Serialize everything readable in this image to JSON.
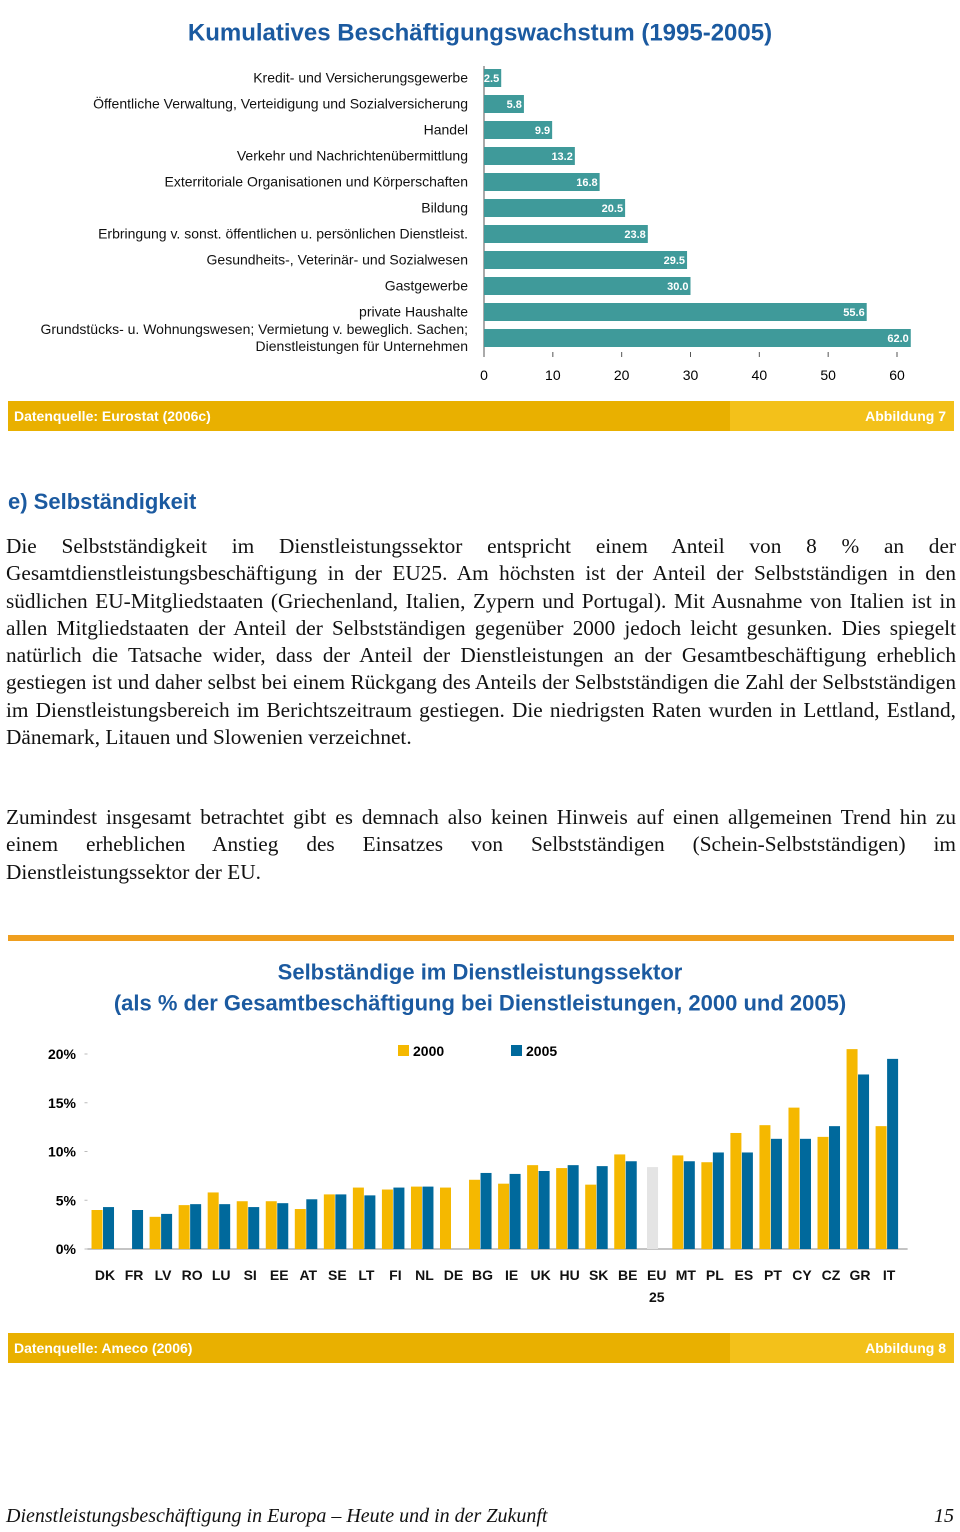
{
  "chart_data": [
    {
      "type": "bar",
      "orientation": "horizontal",
      "title": "Kumulatives Beschäftigungswachstum (1995-2005)",
      "categories": [
        "Kredit- und Versicherungsgewerbe",
        "Öffentliche Verwaltung, Verteidigung und Sozialversicherung",
        "Handel",
        "Verkehr und Nachrichtenübermittlung",
        "Exterritoriale Organisationen und Körperschaften",
        "Bildung",
        "Erbringung v. sonst. öffentlichen u. persönlichen Dienstleist.",
        "Gesundheits-, Veterinär- und Sozialwesen",
        "Gastgewerbe",
        "private Haushalte",
        "Grundstücks- u. Wohnungswesen; Vermietung v. beweglich. Sachen; Dienstleistungen für Unternehmen"
      ],
      "values": [
        2.5,
        5.8,
        9.9,
        13.2,
        16.8,
        20.5,
        23.8,
        29.5,
        30.0,
        55.6,
        62.0
      ],
      "value_labels": [
        "2.5",
        "5.8",
        "9.9",
        "13.2",
        "16.8",
        "20.5",
        "23.8",
        "29.5",
        "30.0",
        "55.6",
        "62.0"
      ],
      "color": "#3f9a9a",
      "xlim": [
        0,
        62
      ],
      "xticks": [
        0,
        10,
        20,
        30,
        40,
        50,
        60
      ],
      "grid": false
    },
    {
      "type": "bar",
      "title": [
        "Selbständige im Dienstleistungssektor",
        "(als % der Gesamtbeschäftigung bei Dienstleistungen, 2000 und 2005)"
      ],
      "categories": [
        "DK",
        "FR",
        "LV",
        "RO",
        "LU",
        "SI",
        "EE",
        "AT",
        "SE",
        "LT",
        "FI",
        "NL",
        "DE",
        "BG",
        "IE",
        "UK",
        "HU",
        "SK",
        "BE",
        "EU 25",
        "MT",
        "PL",
        "ES",
        "PT",
        "CY",
        "CZ",
        "GR",
        "IT"
      ],
      "series": [
        {
          "name": "2000",
          "color": "#f5b800",
          "values": [
            4.0,
            null,
            3.3,
            4.5,
            5.8,
            4.9,
            4.9,
            4.1,
            5.6,
            6.3,
            6.1,
            6.4,
            6.3,
            7.1,
            6.7,
            8.6,
            8.3,
            6.6,
            9.7,
            8.4,
            9.6,
            8.9,
            11.9,
            12.7,
            14.5,
            11.5,
            20.5,
            12.6
          ]
        },
        {
          "name": "2005",
          "color": "#00699c",
          "values": [
            4.3,
            4.0,
            3.6,
            4.6,
            4.6,
            4.3,
            4.7,
            5.1,
            5.6,
            5.5,
            6.3,
            6.4,
            null,
            7.8,
            7.7,
            8.0,
            8.6,
            8.5,
            9.0,
            null,
            9.0,
            9.9,
            9.9,
            11.3,
            11.3,
            12.6,
            17.9,
            19.5
          ]
        }
      ],
      "highlight": {
        "category": "EU 25",
        "color": "#e4e4e4"
      },
      "ylim": [
        0,
        21
      ],
      "yticks": [
        {
          "value": 0,
          "label": "0%"
        },
        {
          "value": 5,
          "label": "5%"
        },
        {
          "value": 10,
          "label": "10%"
        },
        {
          "value": 15,
          "label": "15%"
        },
        {
          "value": 20,
          "label": "20%"
        }
      ],
      "grid": false,
      "legend": "top"
    }
  ],
  "figure_notes": [
    {
      "source": "Datenquelle: Eurostat (2006c)",
      "label": "Abbildung 7"
    },
    {
      "source": "Datenquelle: Ameco (2006)",
      "label": "Abbildung 8"
    }
  ],
  "section": {
    "heading": "e) Selbständigkeit",
    "paragraphs": [
      "Die Selbstständigkeit im Dienstleistungssektor entspricht einem Anteil von 8 % an der Gesamtdienstleistungsbeschäftigung in der EU25. Am höchsten ist der Anteil der Selbst­ständigen in den südlichen EU-Mitgliedstaaten (Griechenland, Italien, Zypern und Portugal). Mit Ausnahme von Italien ist in allen Mitgliedstaaten der Anteil der Selbstständigen gegenüber 2000 jedoch leicht gesunken. Dies spiegelt natürlich die Tatsache wider, dass der Anteil der Dienstleistungen an der Gesamtbeschäftigung erheblich gestiegen ist und daher selbst bei einem Rückgang des Anteils der Selbstständigen die Zahl der Selbstständigen im Dienstleistungsbereich im Berichtszeitraum gestiegen. Die niedrigsten Raten wurden in Lettland, Estland, Dänemark, Litauen und Slowenien verzeichnet.",
      "Zumindest insgesamt betrachtet gibt es demnach also keinen Hinweis auf einen allgemeinen Trend hin zu einem erheblichen Anstieg des Einsatzes von Selbstständigen (Schein-Selbstständigen) im Dienstleistungssektor der EU."
    ]
  },
  "footer": {
    "title": "Dienstleistungsbeschäftigung in Europa – Heute und in der Zukunft",
    "page": 15
  }
}
